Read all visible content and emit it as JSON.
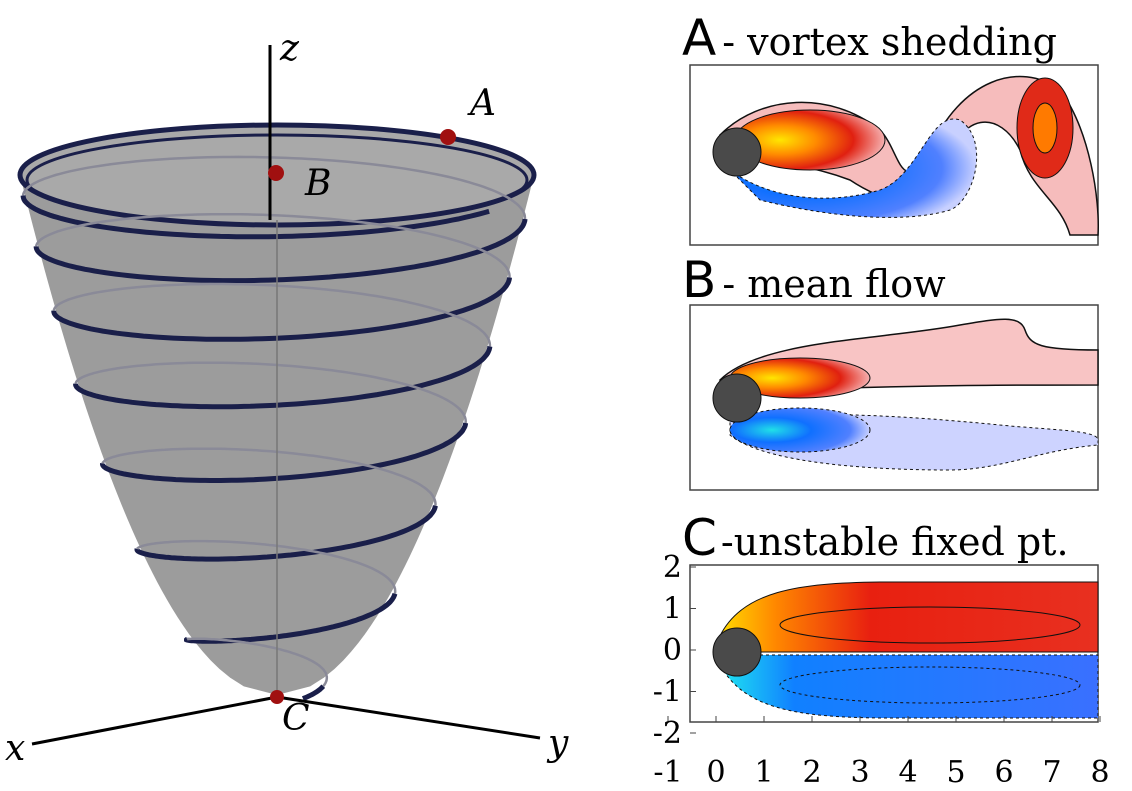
{
  "left_panel": {
    "labels": {
      "z": "z",
      "A": "A",
      "B": "B",
      "C": "C",
      "x": "x",
      "y": "y"
    }
  },
  "right_panels": [
    {
      "letter": "A",
      "title": "- vortex shedding"
    },
    {
      "letter": "B",
      "title": "- mean flow"
    },
    {
      "letter": "C",
      "title": "-unstable fixed pt."
    }
  ],
  "axis": {
    "yticks": [
      2,
      1,
      0,
      -1,
      -2
    ],
    "xticks": [
      -1,
      0,
      1,
      2,
      3,
      4,
      5,
      6,
      7,
      8
    ]
  }
}
